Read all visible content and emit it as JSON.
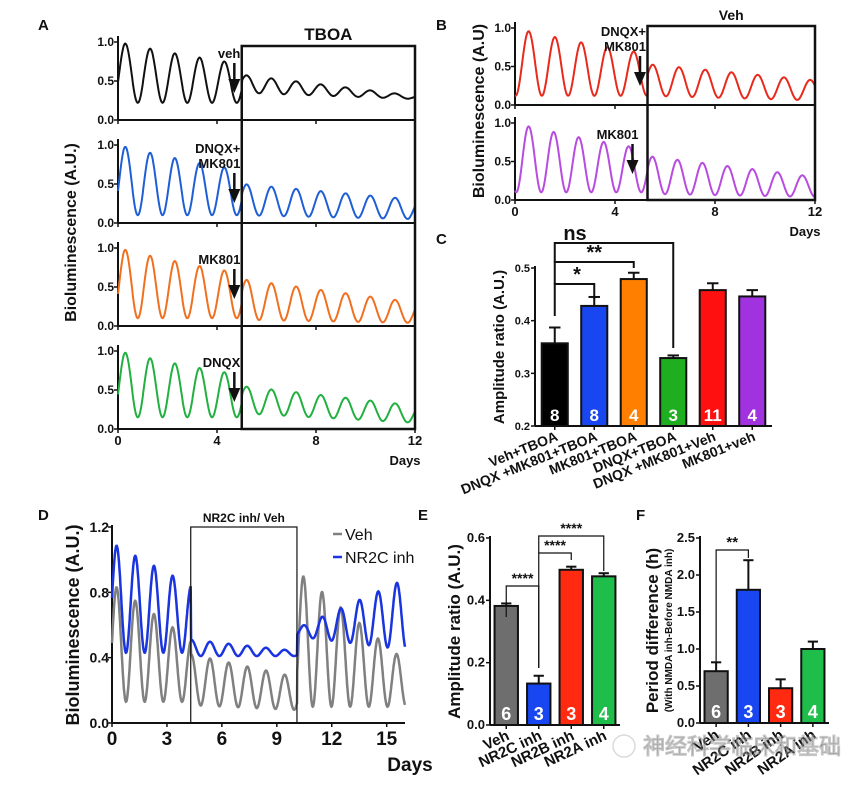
{
  "watermark": "神经科学临床和基础",
  "chart_data": [
    {
      "panel": "A",
      "type": "line",
      "ylabel": "Bioluminescence (A.U.)",
      "xlabel": "Days",
      "xlim": [
        0,
        12
      ],
      "ylim": [
        0,
        1.0
      ],
      "x_ticks": [
        "0",
        "4",
        "8",
        "12"
      ],
      "y_ticks": [
        "0.0",
        "0.5",
        "1.0"
      ],
      "box_label": "TBOA",
      "box_start_day": 5,
      "subplots": [
        {
          "name": "veh",
          "annotation": "veh",
          "color": "#111111",
          "arrow_day": 4.7,
          "pre": {
            "period": 1.0,
            "peak": 1.0,
            "trough": 0.22,
            "decay": 0.06
          },
          "post": {
            "first_peak": 0.58,
            "last_peak": 0.31,
            "trough_start": 0.35,
            "trough_end": 0.27
          }
        },
        {
          "name": "dnqx-mk801",
          "annotation": "DNQX+\nMK801",
          "color": "#1f5fd6",
          "arrow_day": 4.7,
          "pre": {
            "period": 1.0,
            "peak": 1.0,
            "trough": 0.1
          },
          "post": {
            "first_peak": 0.5,
            "last_peak": 0.3,
            "trough_start": 0.1,
            "trough_end": 0.05
          }
        },
        {
          "name": "mk801",
          "annotation": "MK801",
          "color": "#f07020",
          "arrow_day": 4.7,
          "pre": {
            "period": 1.0,
            "peak": 1.0,
            "trough": 0.1
          },
          "post": {
            "first_peak": 0.6,
            "last_peak": 0.3,
            "trough_start": 0.08,
            "trough_end": 0.04
          }
        },
        {
          "name": "dnqx",
          "annotation": "DNQX",
          "color": "#22b040",
          "arrow_day": 4.7,
          "pre": {
            "period": 1.0,
            "peak": 1.0,
            "trough": 0.15
          },
          "post": {
            "first_peak": 0.55,
            "last_peak": 0.3,
            "trough_start": 0.2,
            "trough_end": 0.08
          }
        }
      ]
    },
    {
      "panel": "B",
      "type": "line",
      "ylabel": "Bioluminescence (A.U)",
      "xlabel": "Days",
      "xlim": [
        0,
        12
      ],
      "ylim": [
        0,
        1.0
      ],
      "x_ticks": [
        "0",
        "4",
        "8",
        "12"
      ],
      "y_ticks": [
        "0.0",
        "0.5",
        "1.0"
      ],
      "box_label": "Veh",
      "box_start_day": 5.3,
      "subplots": [
        {
          "name": "dnqx-mk801",
          "annotation": "DNQX+\nMK801",
          "color": "#e8291c",
          "arrow_day": 5.0,
          "pre": {
            "period": 1.05,
            "peak": 1.0,
            "trough": 0.12
          },
          "post": {
            "first_peak": 0.53,
            "last_peak": 0.32,
            "trough_start": 0.12,
            "trough_end": 0.06
          }
        },
        {
          "name": "mk801",
          "annotation": "MK801",
          "color": "#b84be0",
          "arrow_day": 4.7,
          "pre": {
            "period": 1.0,
            "peak": 1.0,
            "trough": 0.1
          },
          "post": {
            "first_peak": 0.57,
            "last_peak": 0.3,
            "trough_start": 0.08,
            "trough_end": 0.04
          }
        }
      ]
    },
    {
      "panel": "C",
      "type": "bar",
      "ylabel": "Amplitude ratio (A.U.)",
      "ylim": [
        0.2,
        0.5
      ],
      "y_ticks": [
        "0.2",
        "0.3",
        "0.4",
        "0.5"
      ],
      "categories": [
        "Veh+TBOA",
        "DNQX +MK801+TBOA",
        "MK801+TBOA",
        "DNQX+TBOA",
        "DNQX +MK801+Veh",
        "MK801+veh"
      ],
      "values": [
        0.357,
        0.428,
        0.479,
        0.329,
        0.458,
        0.446
      ],
      "errors": [
        0.03,
        0.017,
        0.012,
        0.005,
        0.013,
        0.012
      ],
      "n": [
        "8",
        "8",
        "4",
        "3",
        "11",
        "4"
      ],
      "colors": [
        "#000000",
        "#1846f0",
        "#ff7f00",
        "#1fae1f",
        "#ff1010",
        "#a032e0"
      ],
      "significance": [
        {
          "from": 0,
          "to": 1,
          "label": "*"
        },
        {
          "from": 0,
          "to": 2,
          "label": "**"
        },
        {
          "from": 0,
          "to": 3,
          "label": "ns"
        }
      ]
    },
    {
      "panel": "D",
      "type": "line",
      "ylabel": "Bioluminescence (A.U.)",
      "xlabel": "Days",
      "xlim": [
        0,
        16
      ],
      "ylim": [
        0,
        1.2
      ],
      "x_ticks": [
        "0",
        "3",
        "6",
        "9",
        "12",
        "15"
      ],
      "y_ticks": [
        "0.0",
        "0.4",
        "0.8",
        "1.2"
      ],
      "box_label": "NR2C inh/ Veh",
      "box_range_days": [
        4.3,
        10.1
      ],
      "legend": [
        {
          "label": "Veh",
          "color": "#808080"
        },
        {
          "label": "NR2C inh",
          "color": "#1a35e0"
        }
      ],
      "legend_position": "top-right"
    },
    {
      "panel": "E",
      "type": "bar",
      "ylabel": "Amplitude ratio (A.U.)",
      "ylim": [
        0,
        0.6
      ],
      "y_ticks": [
        "0.0",
        "0.2",
        "0.4",
        "0.6"
      ],
      "categories": [
        "Veh",
        "NR2C inh",
        "NR2B inh",
        "NR2A inh"
      ],
      "values": [
        0.382,
        0.133,
        0.498,
        0.477
      ],
      "errors": [
        0.008,
        0.025,
        0.01,
        0.01
      ],
      "n": [
        "6",
        "3",
        "3",
        "4"
      ],
      "colors": [
        "#6e6e6e",
        "#1846f0",
        "#ff2a10",
        "#1fbe4a"
      ],
      "significance": [
        {
          "from": 0,
          "to": 1,
          "label": "****"
        },
        {
          "from": 1,
          "to": 2,
          "label": "****"
        },
        {
          "from": 1,
          "to": 3,
          "label": "****"
        }
      ]
    },
    {
      "panel": "F",
      "type": "bar",
      "ylabel": "Period difference (h)",
      "ylabel_sub": "(With NMDA inh-Before NMDA inh)",
      "ylim": [
        0,
        2.5
      ],
      "y_ticks": [
        "0.0",
        "0.5",
        "1.0",
        "1.5",
        "2.0",
        "2.5"
      ],
      "categories": [
        "Veh",
        "NR2C inh",
        "NR2B inh",
        "NR2A inh"
      ],
      "values": [
        0.7,
        1.8,
        0.47,
        1.0
      ],
      "errors": [
        0.12,
        0.4,
        0.12,
        0.1
      ],
      "n": [
        "6",
        "3",
        "3",
        "4"
      ],
      "colors": [
        "#6e6e6e",
        "#1846f0",
        "#ff2a10",
        "#1fbe4a"
      ],
      "significance": [
        {
          "from": 0,
          "to": 1,
          "label": "**"
        }
      ]
    }
  ]
}
